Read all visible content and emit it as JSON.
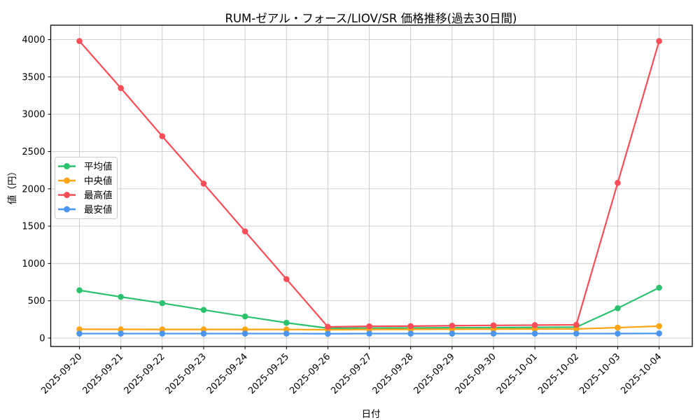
{
  "chart_data": {
    "type": "line",
    "title": "RUM-ゼアル・フォース/LIOV/SR 価格推移(過去30日間)",
    "xlabel": "日付",
    "ylabel": "値（円）",
    "categories": [
      "2025-09-20",
      "2025-09-21",
      "2025-09-22",
      "2025-09-23",
      "2025-09-24",
      "2025-09-25",
      "2025-09-26",
      "2025-09-27",
      "2025-09-28",
      "2025-09-29",
      "2025-09-30",
      "2025-10-01",
      "2025-10-02",
      "2025-10-03",
      "2025-10-04"
    ],
    "series": [
      {
        "name": "平均値",
        "key": "average",
        "color": "#2cc26d",
        "values": [
          640,
          552,
          468,
          378,
          290,
          205,
          132,
          134,
          136,
          138,
          140,
          143,
          146,
          400,
          675
        ]
      },
      {
        "name": "中央値",
        "key": "median",
        "color": "#ffa413",
        "values": [
          118,
          117,
          116,
          116,
          116,
          115,
          112,
          115,
          117,
          119,
          120,
          121,
          122,
          140,
          160
        ]
      },
      {
        "name": "最高値",
        "key": "highest",
        "color": "#fb4d57",
        "values": [
          3980,
          3350,
          2705,
          2070,
          1430,
          790,
          150,
          158,
          160,
          166,
          170,
          174,
          178,
          2080,
          3980
        ]
      },
      {
        "name": "最安値",
        "key": "lowest",
        "color": "#4a96f0",
        "values": [
          60,
          60,
          60,
          60,
          60,
          60,
          58,
          60,
          60,
          60,
          60,
          60,
          60,
          60,
          62
        ]
      }
    ],
    "yticks": [
      0,
      500,
      1000,
      1500,
      2000,
      2500,
      3000,
      3500,
      4000
    ],
    "ylim": [
      -113,
      4193
    ],
    "grid": true,
    "legend_position": "center-left"
  },
  "colors": {
    "grid": "#c9c9c9",
    "spine": "#000000",
    "text": "#000000",
    "background": "#ffffff",
    "legend_border": "#cccccc"
  }
}
